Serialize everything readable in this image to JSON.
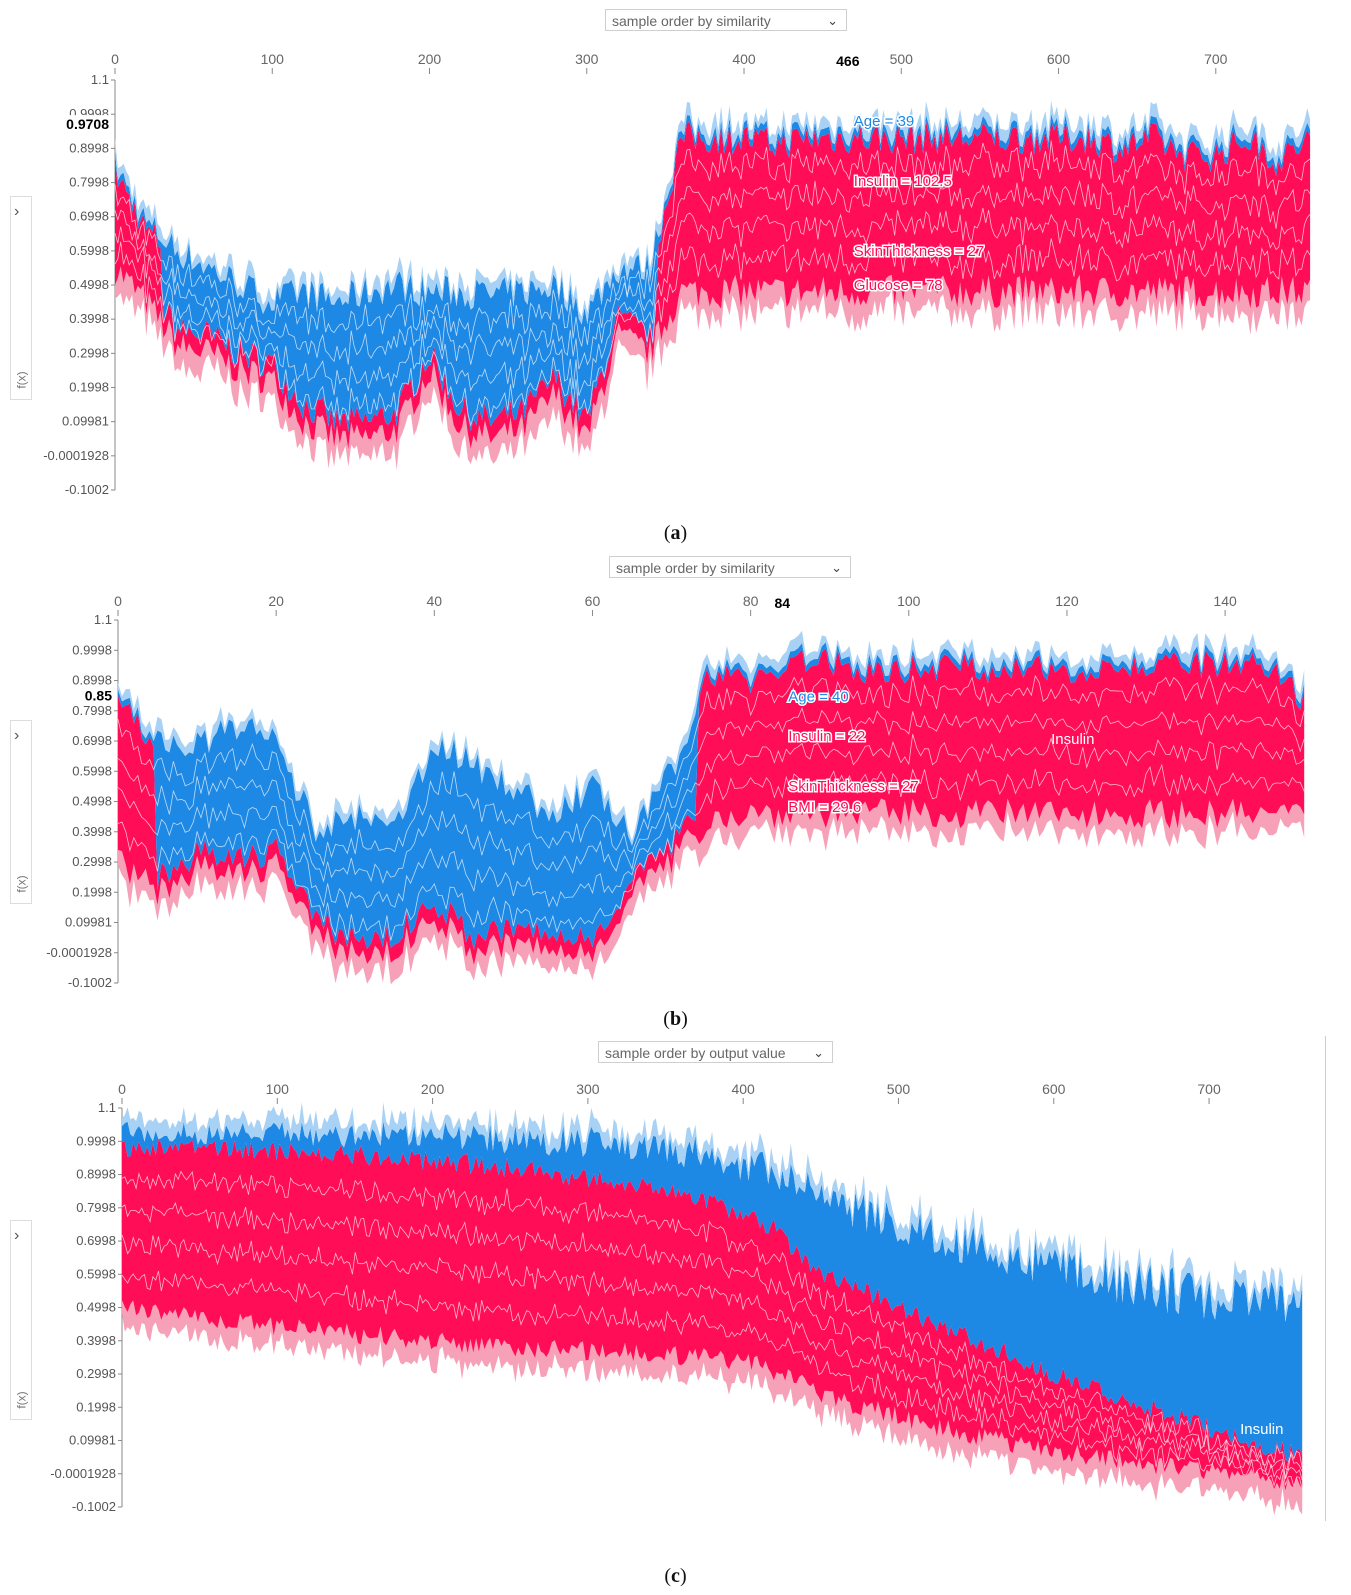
{
  "panels": [
    {
      "id": "a",
      "dropdown": "sample order by similarity",
      "caption_letter": "a",
      "ylabel": "f(x)",
      "x_ticks": [
        "0",
        "100",
        "200",
        "300",
        "400",
        "500",
        "600",
        "700"
      ],
      "x_tick_values": [
        0,
        100,
        200,
        300,
        400,
        500,
        600,
        700
      ],
      "x_max": 765,
      "hover_x": "466",
      "hover_x_value": 466,
      "y_ticks": [
        "1.1",
        "0.9998",
        "0.8998",
        "0.7998",
        "0.6998",
        "0.5998",
        "0.4998",
        "0.3998",
        "0.2998",
        "0.1998",
        "0.09981",
        "-0.0001928",
        "-0.1002"
      ],
      "y_tick_values": [
        1.1,
        0.9998,
        0.8998,
        0.7998,
        0.6998,
        0.5998,
        0.4998,
        0.3998,
        0.2998,
        0.1998,
        0.09981,
        -0.0001928,
        -0.1002
      ],
      "hover_y": "0.9708",
      "hover_y_value": 0.9708,
      "annotations": [
        {
          "text": "Age = 39",
          "color": "blue",
          "x": 466,
          "y": 0.965
        },
        {
          "text": "Insulin = 102.5",
          "color": "red",
          "x": 466,
          "y": 0.79
        },
        {
          "text": "SkinThickness = 27",
          "color": "red",
          "x": 466,
          "y": 0.585
        },
        {
          "text": "Glucose = 78",
          "color": "red",
          "x": 466,
          "y": 0.485
        }
      ]
    },
    {
      "id": "b",
      "dropdown": "sample order by similarity",
      "caption_letter": "b",
      "ylabel": "f(x)",
      "x_ticks": [
        "0",
        "20",
        "40",
        "60",
        "80",
        "100",
        "120",
        "140"
      ],
      "x_tick_values": [
        0,
        20,
        40,
        60,
        80,
        100,
        120,
        140
      ],
      "x_max": 152,
      "hover_x": "84",
      "hover_x_value": 84,
      "y_ticks": [
        "1.1",
        "0.9998",
        "0.8998",
        "0.7998",
        "0.6998",
        "0.5998",
        "0.4998",
        "0.3998",
        "0.2998",
        "0.1998",
        "0.09981",
        "-0.0001928",
        "-0.1002"
      ],
      "y_tick_values": [
        1.1,
        0.9998,
        0.8998,
        0.7998,
        0.6998,
        0.5998,
        0.4998,
        0.3998,
        0.2998,
        0.1998,
        0.09981,
        -0.0001928,
        -0.1002
      ],
      "hover_y": "0.85",
      "hover_y_value": 0.85,
      "annotations": [
        {
          "text": "Age = 40",
          "color": "blue",
          "x": 84,
          "y": 0.83
        },
        {
          "text": "Insulin = 22",
          "color": "red",
          "x": 84,
          "y": 0.7
        },
        {
          "text": "SkinThickness = 27",
          "color": "red",
          "x": 84,
          "y": 0.535
        },
        {
          "text": "BMI = 29.6",
          "color": "red",
          "x": 84,
          "y": 0.465
        },
        {
          "text": "Insulin",
          "color": "white",
          "x": 118,
          "y": 0.69
        }
      ]
    },
    {
      "id": "c",
      "dropdown": "sample order by output value",
      "caption_letter": "c",
      "ylabel": "f(x)",
      "x_ticks": [
        "0",
        "100",
        "200",
        "300",
        "400",
        "500",
        "600",
        "700"
      ],
      "x_tick_values": [
        0,
        100,
        200,
        300,
        400,
        500,
        600,
        700
      ],
      "x_max": 765,
      "y_ticks": [
        "1.1",
        "0.9998",
        "0.8998",
        "0.7998",
        "0.6998",
        "0.5998",
        "0.4998",
        "0.3998",
        "0.2998",
        "0.1998",
        "0.09981",
        "-0.0001928",
        "-0.1002"
      ],
      "y_tick_values": [
        1.1,
        0.9998,
        0.8998,
        0.7998,
        0.6998,
        0.5998,
        0.4998,
        0.3998,
        0.2998,
        0.1998,
        0.09981,
        -0.0001928,
        -0.1002
      ],
      "annotations": [
        {
          "text": "Insulin",
          "color": "white",
          "x": 720,
          "y": 0.12
        }
      ]
    }
  ],
  "colors": {
    "red": "#ff0d57",
    "blue": "#1e88e5",
    "light_red": "#f7a1b8",
    "light_blue": "#a8d2f5",
    "axis": "#888888"
  },
  "chart_data": [
    {
      "type": "area",
      "x": [
        0,
        20,
        40,
        60,
        80,
        100,
        120,
        140,
        160,
        180,
        200,
        220,
        240,
        260,
        280,
        300,
        320,
        340,
        360,
        380,
        400,
        420,
        440,
        460,
        480,
        500,
        520,
        540,
        560,
        580,
        600,
        620,
        640,
        660,
        680,
        700,
        720,
        740,
        760
      ],
      "series": [
        {
          "values": [
            0.55,
            0.45,
            0.32,
            0.3,
            0.25,
            0.22,
            0.1,
            0.05,
            0.05,
            0.08,
            0.25,
            0.08,
            0.05,
            0.08,
            0.18,
            0.05,
            0.35,
            0.3,
            0.48,
            0.48,
            0.48,
            0.48,
            0.48,
            0.48,
            0.48,
            0.48,
            0.48,
            0.48,
            0.48,
            0.48,
            0.48,
            0.48,
            0.48,
            0.48,
            0.48,
            0.48,
            0.48,
            0.48,
            0.48
          ]
        },
        {
          "values": [
            0.85,
            0.68,
            0.6,
            0.55,
            0.5,
            0.45,
            0.48,
            0.45,
            0.48,
            0.5,
            0.48,
            0.48,
            0.47,
            0.48,
            0.5,
            0.42,
            0.55,
            0.55,
            0.95,
            0.95,
            0.95,
            0.93,
            0.95,
            0.95,
            0.95,
            0.95,
            0.95,
            0.95,
            0.95,
            0.95,
            0.95,
            0.95,
            0.92,
            0.95,
            0.9,
            0.9,
            0.95,
            0.88,
            0.95
          ]
        }
      ],
      "ylim": [
        -0.1002,
        1.1
      ]
    },
    {
      "type": "area",
      "x": [
        0,
        5,
        10,
        15,
        20,
        25,
        30,
        35,
        40,
        45,
        50,
        55,
        60,
        65,
        70,
        75,
        80,
        85,
        90,
        95,
        100,
        105,
        110,
        115,
        120,
        125,
        130,
        135,
        140,
        145,
        150
      ],
      "series": [
        {
          "values": [
            0.3,
            0.2,
            0.28,
            0.25,
            0.3,
            0.05,
            0.0,
            0.0,
            0.12,
            0.0,
            0.03,
            0.0,
            0.0,
            0.2,
            0.3,
            0.45,
            0.46,
            0.46,
            0.46,
            0.46,
            0.46,
            0.46,
            0.46,
            0.46,
            0.46,
            0.46,
            0.46,
            0.46,
            0.46,
            0.46,
            0.45
          ]
        },
        {
          "values": [
            0.85,
            0.7,
            0.68,
            0.75,
            0.7,
            0.4,
            0.45,
            0.4,
            0.7,
            0.62,
            0.55,
            0.45,
            0.55,
            0.38,
            0.6,
            0.95,
            0.92,
            0.98,
            0.98,
            0.95,
            0.96,
            0.97,
            0.96,
            0.95,
            0.96,
            0.97,
            0.96,
            0.97,
            0.97,
            0.96,
            0.85
          ]
        }
      ],
      "ylim": [
        -0.1002,
        1.1
      ]
    },
    {
      "type": "area",
      "x": [
        0,
        50,
        100,
        150,
        200,
        250,
        300,
        350,
        400,
        420,
        440,
        460,
        480,
        500,
        550,
        600,
        650,
        700,
        760
      ],
      "series": [
        {
          "values": [
            0.5,
            0.47,
            0.44,
            0.42,
            0.4,
            0.38,
            0.37,
            0.36,
            0.34,
            0.31,
            0.27,
            0.22,
            0.2,
            0.17,
            0.11,
            0.07,
            0.03,
            0.01,
            -0.03
          ]
        },
        {
          "values": [
            0.98,
            0.98,
            0.97,
            0.96,
            0.94,
            0.92,
            0.89,
            0.86,
            0.78,
            0.74,
            0.64,
            0.58,
            0.55,
            0.5,
            0.4,
            0.3,
            0.22,
            0.14,
            0.05
          ]
        },
        {
          "values": [
            1.0,
            0.99,
            0.99,
            0.98,
            0.98,
            0.96,
            0.95,
            0.93,
            0.88,
            0.85,
            0.8,
            0.76,
            0.72,
            0.68,
            0.62,
            0.55,
            0.5,
            0.46,
            0.42
          ]
        }
      ],
      "ylim": [
        -0.1002,
        1.1
      ]
    }
  ]
}
